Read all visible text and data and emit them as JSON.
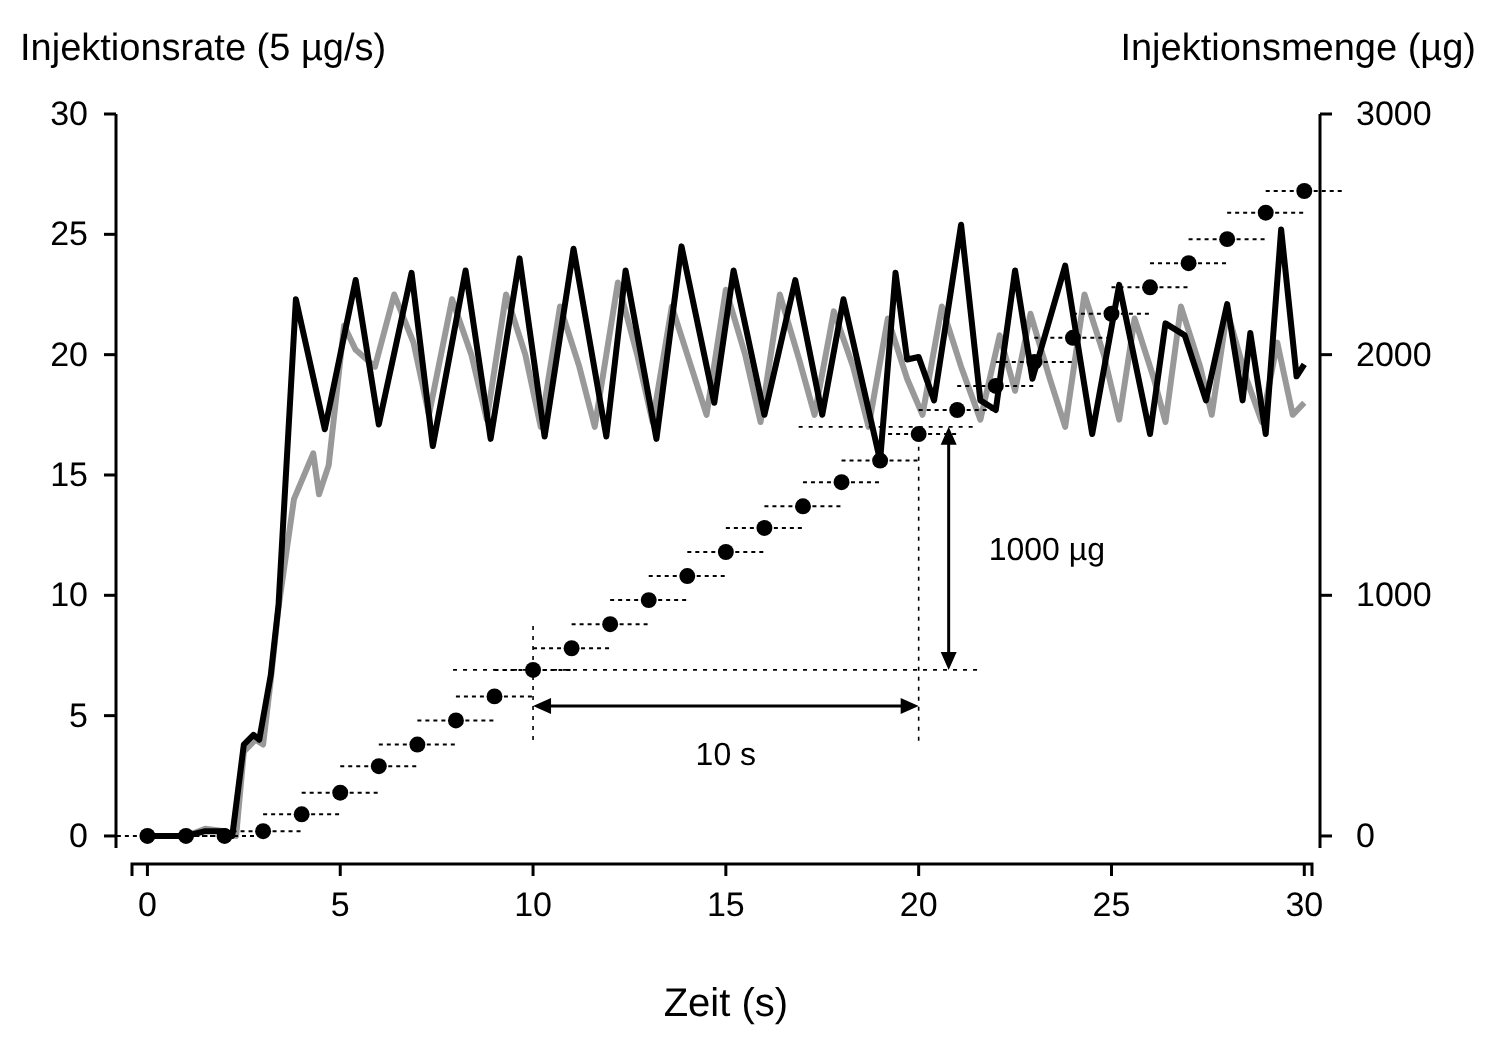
{
  "chart_data": {
    "type": "line",
    "xlabel": "Zeit (s)",
    "ylabel": "Injektionsrate (5 µg/s)",
    "y2label": "Injektionsmenge (µg)",
    "xlim": [
      -0.4,
      30.2
    ],
    "xticks": [
      0,
      5,
      10,
      15,
      20,
      25,
      30
    ],
    "ylim": [
      -0.5,
      30
    ],
    "yticks": [
      0,
      5,
      10,
      15,
      20,
      25,
      30
    ],
    "y2lim": [
      -50,
      3000
    ],
    "y2ticks": [
      0,
      1000,
      2000,
      3000
    ],
    "grid": false,
    "line_style": "solid",
    "series": [
      {
        "color": "#999999",
        "x": [
          0,
          1,
          1.5,
          2,
          2.3,
          2.5,
          2.8,
          3,
          3.2,
          3.4,
          3.8,
          4.3,
          4.45,
          4.7,
          5.1,
          5.4,
          5.9,
          6.4,
          6.9,
          7.3,
          7.9,
          8.4,
          8.8,
          9.3,
          9.8,
          10.2,
          10.7,
          11.2,
          11.6,
          12.2,
          12.7,
          13.1,
          13.6,
          14.1,
          14.5,
          15,
          15.5,
          15.9,
          16.4,
          16.9,
          17.3,
          17.8,
          18.3,
          18.7,
          19.2,
          19.7,
          20.1,
          20.6,
          21.1,
          21.6,
          22.1,
          22.5,
          22.9,
          23.4,
          23.8,
          24.3,
          24.8,
          25.2,
          25.6,
          26.1,
          26.4,
          26.8,
          27.3,
          27.6,
          28,
          28.5,
          28.9,
          29.3,
          29.7,
          30
        ],
        "values": [
          0,
          0,
          0.3,
          0.2,
          0,
          3.5,
          4,
          3.8,
          6.5,
          9.5,
          14,
          15.9,
          14.2,
          15.4,
          21.2,
          20.2,
          19.5,
          22.5,
          20.5,
          17.5,
          22.3,
          20,
          17.3,
          22.5,
          20,
          17,
          22,
          19.5,
          17,
          23,
          20,
          17.2,
          22,
          19.5,
          17.5,
          22.7,
          20,
          17.2,
          22.5,
          19.8,
          17.5,
          21.8,
          19.5,
          17,
          21.5,
          19,
          17.5,
          22,
          19.5,
          17.3,
          20.8,
          18.5,
          21.7,
          19,
          17,
          22.5,
          20,
          17.3,
          21.5,
          19,
          17.2,
          22,
          19.5,
          17.5,
          21.8,
          19,
          17.2,
          20.5,
          17.5,
          18
        ]
      },
      {
        "color": "#000000",
        "x": [
          0,
          1,
          1.5,
          2,
          2.2,
          2.5,
          2.75,
          2.9,
          3.2,
          3.4,
          3.85,
          4.6,
          5.4,
          6,
          6.85,
          7.4,
          8.25,
          8.9,
          9.65,
          10.3,
          11.05,
          11.9,
          12.4,
          13.2,
          13.85,
          14.7,
          15.2,
          16,
          16.8,
          17.5,
          18.05,
          19,
          19.4,
          19.7,
          20,
          20.4,
          21.1,
          21.6,
          22,
          22.5,
          22.95,
          23.8,
          24.5,
          25.2,
          26,
          26.4,
          26.9,
          27.45,
          28,
          28.4,
          28.6,
          29,
          29.4,
          29.8,
          30
        ],
        "values": [
          0,
          0,
          0.2,
          0.2,
          0,
          3.8,
          4.2,
          4,
          6.7,
          9.6,
          22.3,
          16.9,
          23.1,
          17.1,
          23.4,
          16.2,
          23.5,
          16.5,
          24,
          16.6,
          24.4,
          16.6,
          23.5,
          16.5,
          24.5,
          18,
          23.5,
          17.5,
          23.1,
          17.5,
          22.3,
          15.6,
          23.4,
          19.8,
          19.9,
          18.1,
          25.4,
          18.1,
          17.7,
          23.5,
          19,
          23.7,
          16.7,
          22.9,
          16.7,
          21.3,
          20.8,
          18.1,
          22.1,
          18.1,
          20.9,
          16.7,
          25.2,
          19.1,
          19.6
        ]
      },
      {
        "type": "scatter",
        "axis": "y2",
        "color": "#000000",
        "marker": "circle",
        "x": [
          0,
          1,
          2,
          3,
          4,
          5,
          6,
          7,
          8,
          9,
          10,
          11,
          12,
          13,
          14,
          15,
          16,
          17,
          18,
          19,
          20,
          21,
          22,
          23,
          24,
          25,
          26,
          27,
          28,
          29,
          30
        ],
        "values": [
          0,
          0,
          0,
          20,
          90,
          180,
          290,
          380,
          480,
          580,
          690,
          780,
          880,
          980,
          1080,
          1180,
          1280,
          1370,
          1470,
          1560,
          1670,
          1770,
          1870,
          1970,
          2070,
          2170,
          2280,
          2380,
          2480,
          2590,
          2680
        ],
        "xerrors": [
          1,
          1,
          1,
          1,
          1,
          1,
          1,
          1,
          1,
          1,
          1,
          1,
          1,
          1,
          1,
          1,
          1,
          1,
          1,
          1,
          1,
          1,
          1,
          1,
          1,
          1,
          1,
          1,
          1,
          1,
          1
        ]
      }
    ],
    "ref_lines": [
      {
        "axis": "x",
        "value": 10,
        "line_style": "dotted"
      },
      {
        "axis": "x",
        "value": 20,
        "line_style": "dotted"
      },
      {
        "axis": "y2",
        "value": 690,
        "line_style": "dotted"
      },
      {
        "axis": "y2",
        "value": 1700,
        "line_style": "dotted"
      }
    ],
    "annotations": [
      "10 s",
      "1000 µg"
    ]
  }
}
